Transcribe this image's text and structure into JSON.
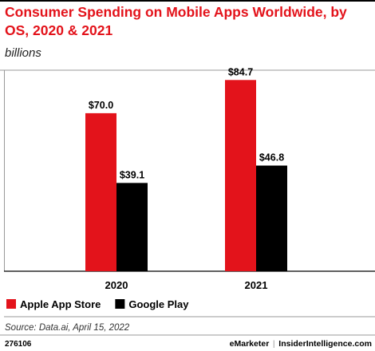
{
  "chart_data": {
    "type": "bar",
    "title": "Consumer Spending on Mobile Apps Worldwide, by OS, 2020 & 2021",
    "subtitle": "billions",
    "categories": [
      "2020",
      "2021"
    ],
    "series": [
      {
        "name": "Apple App Store",
        "color": "#e3131b",
        "values": [
          70.0,
          84.7
        ],
        "value_labels": [
          "$70.0",
          "$84.7"
        ]
      },
      {
        "name": "Google Play",
        "color": "#000000",
        "values": [
          39.1,
          46.8
        ],
        "value_labels": [
          "$39.1",
          "$46.8"
        ]
      }
    ],
    "source": "Source: Data.ai, April 15, 2022",
    "chart_id": "276106",
    "brand": "eMarketer",
    "website": "InsiderIntelligence.com"
  }
}
